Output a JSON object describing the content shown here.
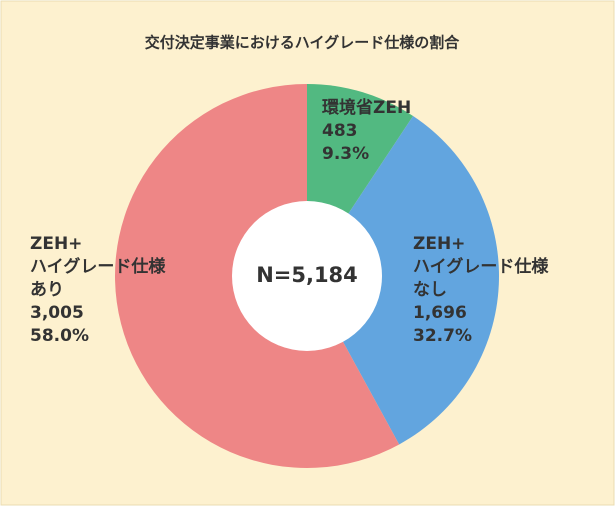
{
  "chart_data": {
    "type": "donut",
    "title": "交付決定事業におけるハイグレード仕様の割合",
    "categories": [
      [
        "環境省ZEH"
      ],
      [
        "ZEH+",
        "ハイグレード仕様",
        "なし"
      ],
      [
        "ZEH+",
        "ハイグレード仕様",
        "あり"
      ]
    ],
    "values": [
      483,
      1696,
      3005
    ],
    "value_labels": [
      "483",
      "1,696",
      "3,005"
    ],
    "percents": [
      9.3,
      32.7,
      58.0
    ],
    "percent_labels": [
      "9.3%",
      "32.7%",
      "58.0%"
    ],
    "colors": [
      "#52b981",
      "#62a5df",
      "#ee8686"
    ],
    "center_label": "N=5,184"
  }
}
